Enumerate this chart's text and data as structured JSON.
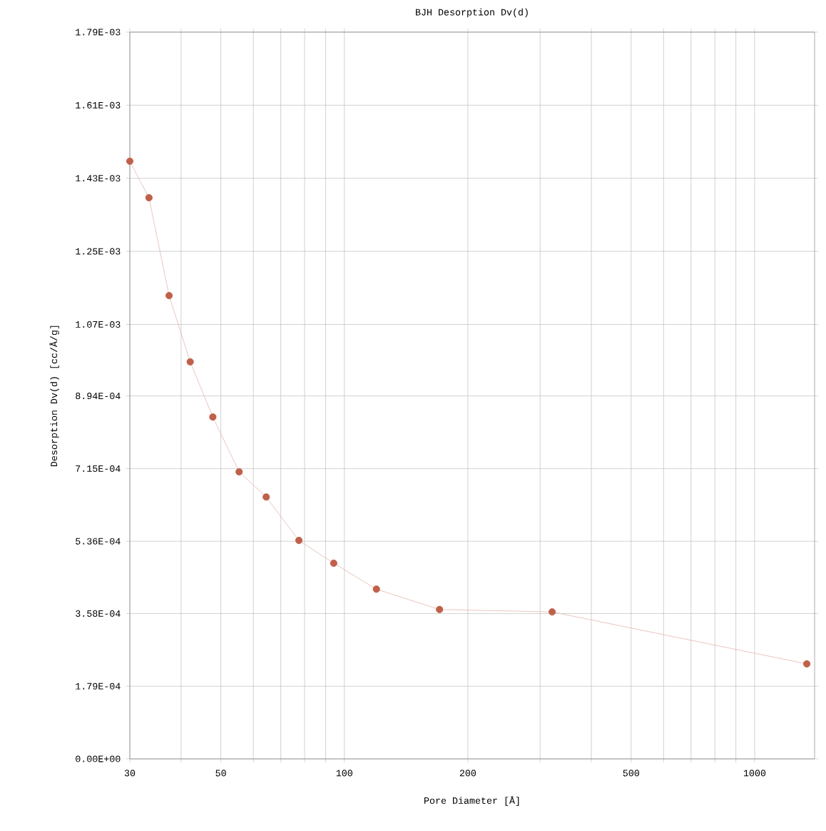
{
  "chart_data": {
    "type": "line",
    "title": "BJH Desorption Dv(d)",
    "xlabel": "Pore Diameter [Å]",
    "ylabel": "Desorption Dv(d) [cc/Å/g]",
    "log": "x",
    "grid": true,
    "marker": "circle",
    "line_style": "solid",
    "xlim": [
      30,
      1400
    ],
    "ylim": [
      0,
      0.00179
    ],
    "xticks": [
      30,
      {
        "value": 40,
        "label": null
      },
      50,
      {
        "value": 60,
        "label": null
      },
      {
        "value": 70,
        "label": null
      },
      {
        "value": 80,
        "label": null
      },
      {
        "value": 90,
        "label": null
      },
      100,
      200,
      {
        "value": 300,
        "label": null
      },
      {
        "value": 400,
        "label": null
      },
      500,
      {
        "value": 600,
        "label": null
      },
      {
        "value": 700,
        "label": null
      },
      {
        "value": 800,
        "label": null
      },
      {
        "value": 900,
        "label": null
      },
      1000
    ],
    "yticks": [
      {
        "value": 0,
        "label": "0.00E+00"
      },
      {
        "value": 0.000179,
        "label": "1.79E-04"
      },
      {
        "value": 0.000358,
        "label": "3.58E-04"
      },
      {
        "value": 0.000536,
        "label": "5.36E-04"
      },
      {
        "value": 0.000715,
        "label": "7.15E-04"
      },
      {
        "value": 0.000894,
        "label": "8.94E-04"
      },
      {
        "value": 0.00107,
        "label": "1.07E-03"
      },
      {
        "value": 0.00125,
        "label": "1.25E-03"
      },
      {
        "value": 0.00143,
        "label": "1.43E-03"
      },
      {
        "value": 0.00161,
        "label": "1.61E-03"
      },
      {
        "value": 0.00179,
        "label": "1.79E-03"
      }
    ],
    "x": [
      30,
      33.4,
      37.4,
      42.1,
      47.8,
      55.4,
      64.5,
      77.5,
      94.2,
      119.7,
      170.6,
      321,
      1340
    ],
    "series": [
      {
        "color": "#c0604a",
        "values": [
          0.001472,
          0.001382,
          0.001141,
          0.000978,
          0.000842,
          0.000707,
          0.000645,
          0.000538,
          0.000482,
          0.000418,
          0.000368,
          0.000362,
          0.000234
        ]
      }
    ]
  }
}
